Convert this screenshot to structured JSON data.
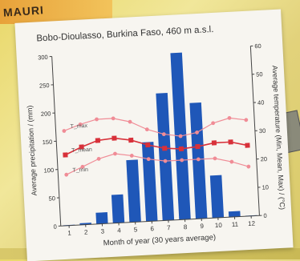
{
  "background": {
    "map_label": "MAURI"
  },
  "chart_data": {
    "type": "bar+line",
    "title": "Bobo-Dioulasso, Burkina Faso, 460 m a.s.l.",
    "xlabel": "Month of year (30 years average)",
    "ylabel_left": "Average precipitation / (mm)",
    "ylabel_right": "Average temperature (Min, Mean, Max) / (°C)",
    "categories": [
      "1",
      "2",
      "3",
      "4",
      "5",
      "6",
      "7",
      "8",
      "9",
      "10",
      "11",
      "12"
    ],
    "y_left_ticks": [
      "0",
      "50",
      "100",
      "150",
      "200",
      "250",
      "300"
    ],
    "y_right_ticks": [
      "0",
      "10",
      "20",
      "30",
      "40",
      "50",
      "60"
    ],
    "ylim_left": [
      0,
      300
    ],
    "ylim_right": [
      0,
      60
    ],
    "precipitation": [
      1,
      3,
      20,
      50,
      110,
      140,
      225,
      295,
      205,
      75,
      10,
      1
    ],
    "series_labels": {
      "max": "T_max",
      "mean": "T_mean",
      "min": "T_min"
    },
    "t_max": [
      33.5,
      35.5,
      37,
      37,
      35.5,
      32.5,
      30.5,
      29.5,
      30.5,
      33.5,
      35,
      34
    ],
    "t_mean": [
      25,
      27.5,
      29.5,
      30,
      29,
      27,
      25.5,
      25,
      25.5,
      26.5,
      26.5,
      25
    ],
    "t_min": [
      18,
      20.5,
      23,
      24.5,
      23.5,
      22,
      21,
      21,
      21,
      21,
      19.5,
      17.5
    ],
    "colors": {
      "bars": "#1f57b8",
      "t_mean": "#d8313a",
      "t_range": "#f08c96"
    }
  }
}
